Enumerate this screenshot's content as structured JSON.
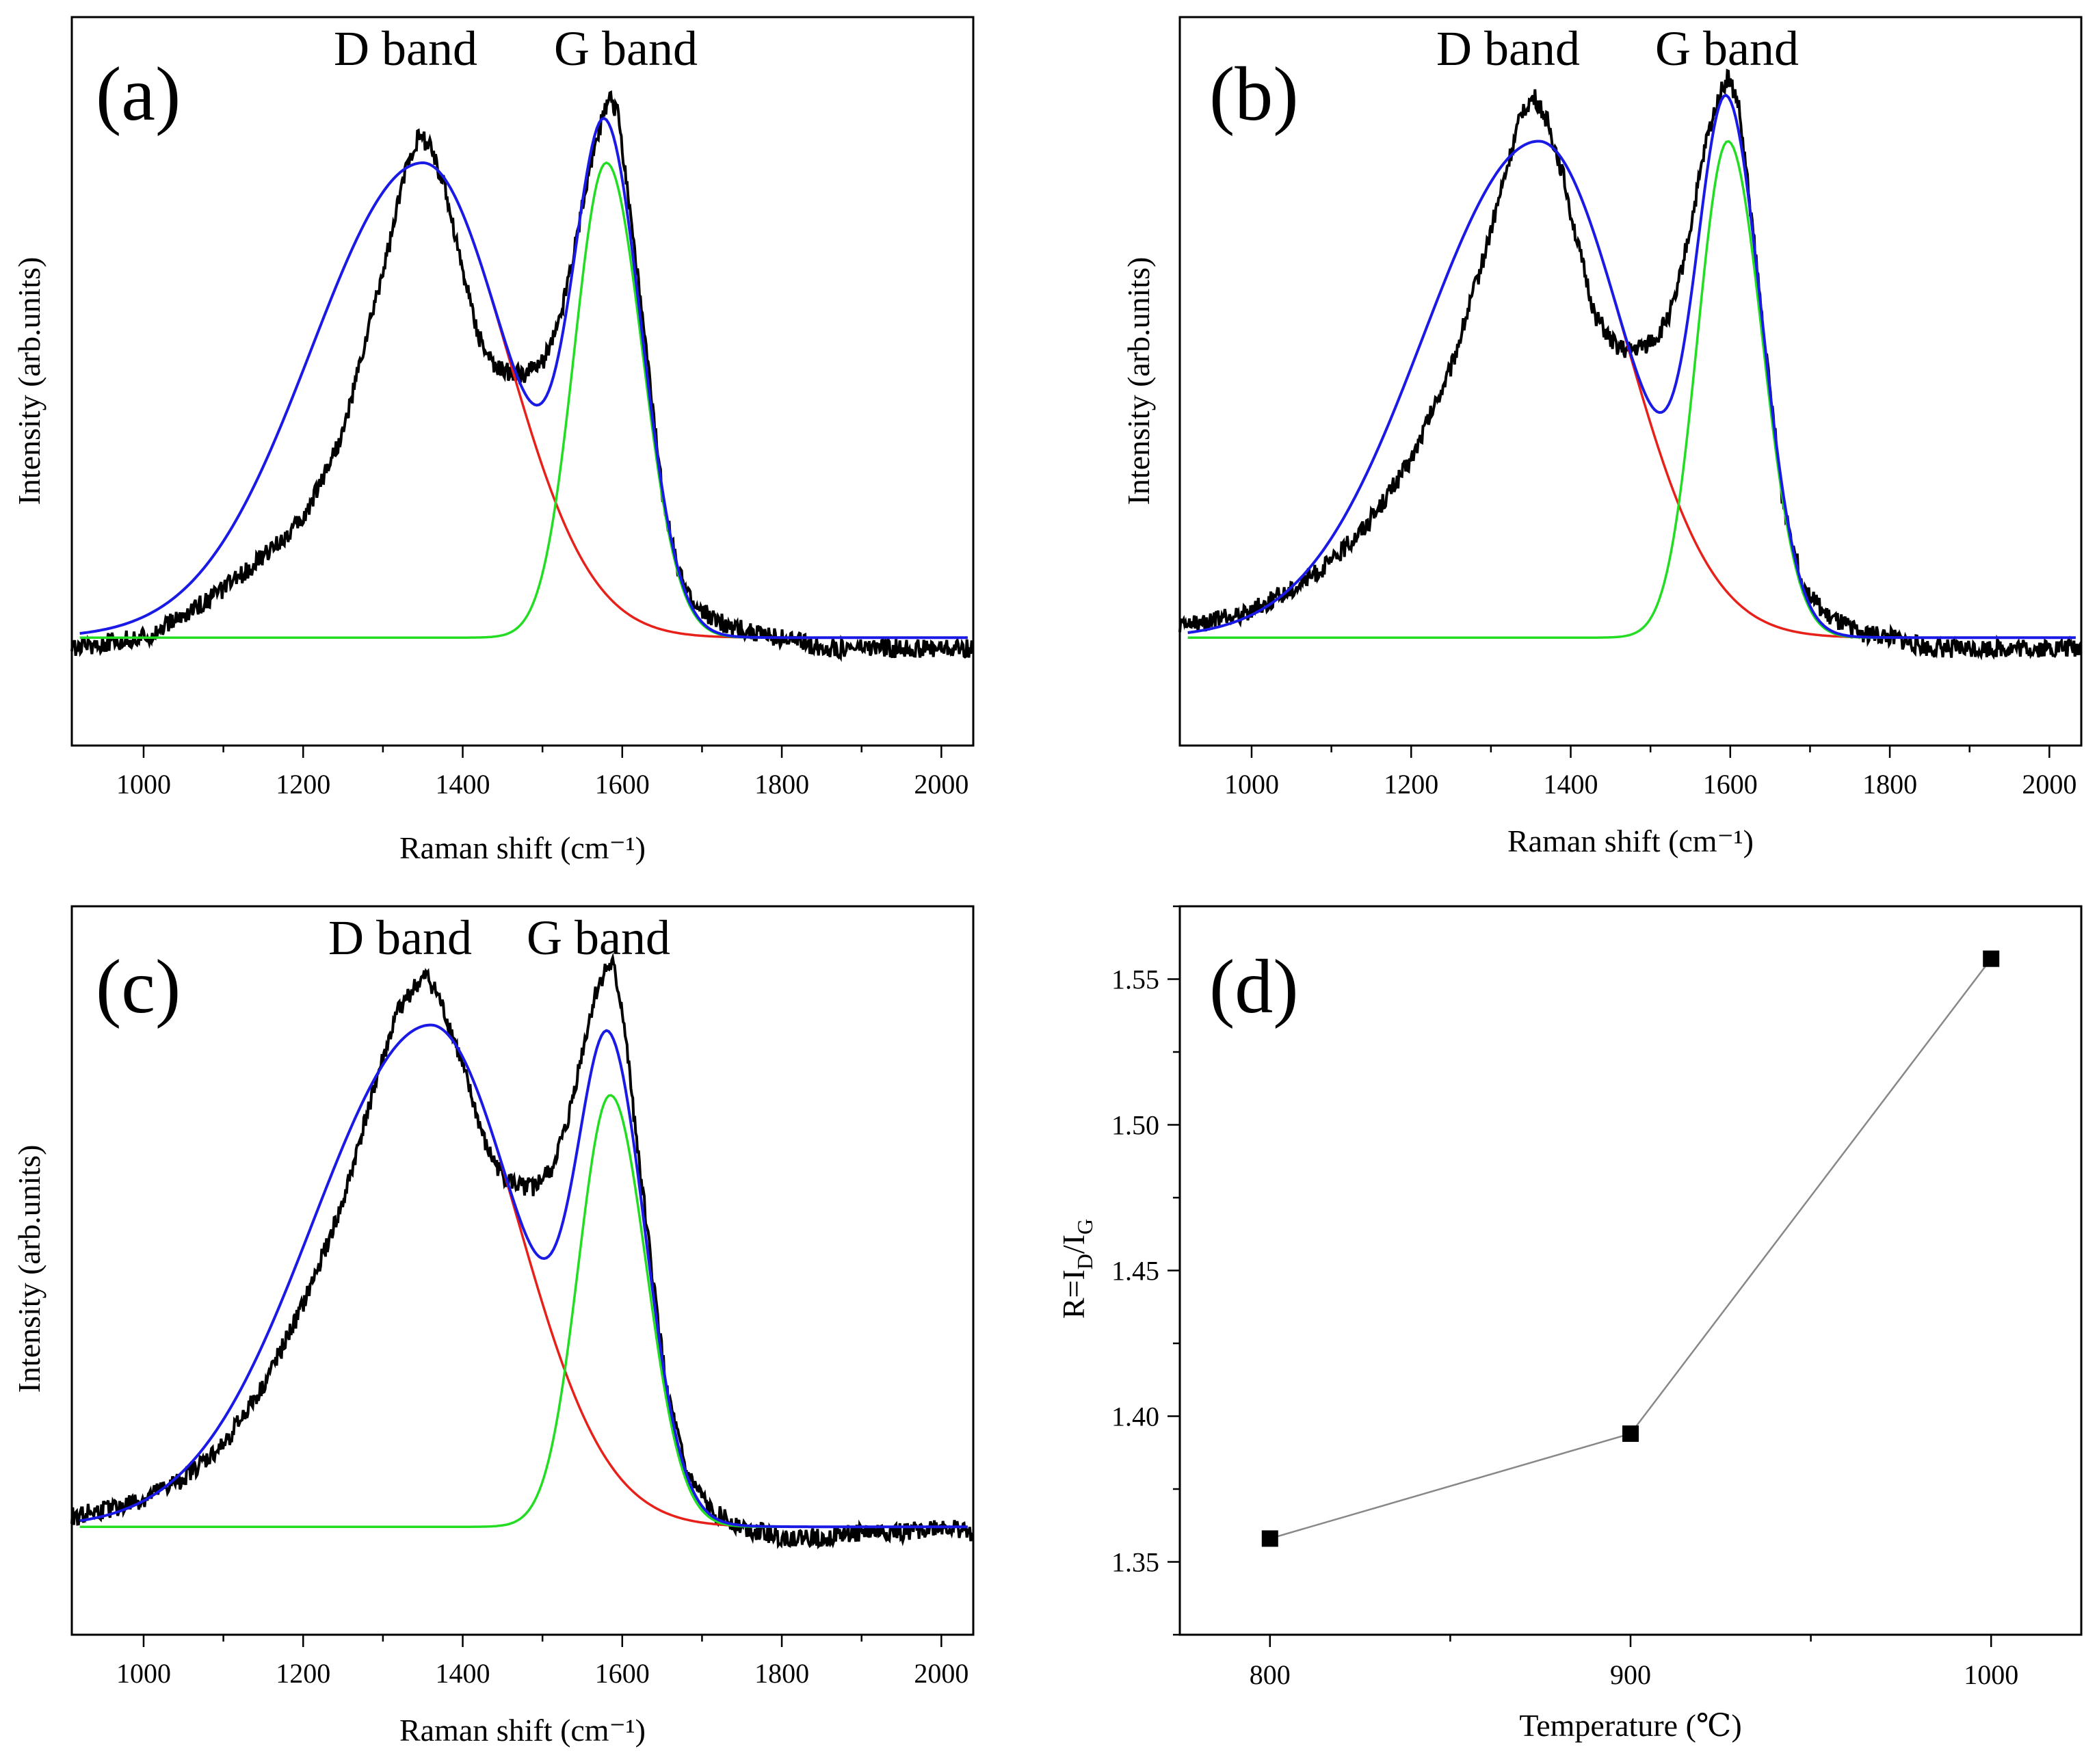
{
  "figure": {
    "panels": [
      "(a)",
      "(b)",
      "(c)",
      "(d)"
    ]
  },
  "colors": {
    "measured": "#000000",
    "d_fit": "#e8201a",
    "g_fit": "#22dd22",
    "total_fit": "#1a1ae6",
    "trend": "#888888"
  },
  "chart_data": [
    {
      "panel": "(a)",
      "type": "line",
      "xlabel": "Raman shift (cm⁻¹)",
      "ylabel": "Intensity (arb.units)",
      "annotations": [
        "D band",
        "G band"
      ],
      "xlim": [
        910,
        2040
      ],
      "ylim": [
        -0.2,
        1.15
      ],
      "xticks": [
        1000,
        1200,
        1400,
        1600,
        1800,
        2000
      ],
      "xtick_labels": [
        "1000",
        "1200",
        "1400",
        "1600",
        "1800",
        "2000"
      ],
      "fit": {
        "baseline": 0.0,
        "d_band": {
          "center": 1350,
          "amplitude": 0.88,
          "width_left": 140,
          "width_right": 105
        },
        "g_band": {
          "center": 1580,
          "amplitude": 0.88,
          "width_left": 40,
          "width_right": 45
        }
      },
      "series": [
        {
          "name": "measured",
          "x": [
            910,
            950,
            1000,
            1050,
            1100,
            1150,
            1200,
            1250,
            1280,
            1310,
            1330,
            1345,
            1360,
            1380,
            1400,
            1420,
            1440,
            1460,
            1480,
            1500,
            1520,
            1540,
            1560,
            1575,
            1585,
            1595,
            1610,
            1630,
            1650,
            1670,
            1690,
            1720,
            1760,
            1800,
            1850,
            1900,
            1950,
            2000,
            2040
          ],
          "y": [
            -0.02,
            -0.01,
            0.0,
            0.04,
            0.09,
            0.15,
            0.22,
            0.38,
            0.56,
            0.74,
            0.88,
            0.93,
            0.91,
            0.82,
            0.68,
            0.56,
            0.5,
            0.49,
            0.49,
            0.51,
            0.58,
            0.72,
            0.88,
            0.96,
            1.0,
            0.97,
            0.79,
            0.53,
            0.27,
            0.12,
            0.06,
            0.03,
            0.01,
            0.0,
            -0.02,
            -0.02,
            -0.02,
            -0.02,
            -0.02
          ]
        },
        {
          "name": "D band fit"
        },
        {
          "name": "G band fit"
        },
        {
          "name": "sum fit"
        }
      ]
    },
    {
      "panel": "(b)",
      "type": "line",
      "xlabel": "Raman shift (cm⁻¹)",
      "ylabel": "Intensity (arb.units)",
      "annotations": [
        "D band",
        "G band"
      ],
      "xlim": [
        910,
        2040
      ],
      "ylim": [
        -0.2,
        1.15
      ],
      "xticks": [
        1000,
        1200,
        1400,
        1600,
        1800,
        2000
      ],
      "xtick_labels": [
        "1000",
        "1200",
        "1400",
        "1600",
        "1800",
        "2000"
      ],
      "fit": {
        "baseline": 0.0,
        "d_band": {
          "center": 1360,
          "amplitude": 0.92,
          "width_left": 145,
          "width_right": 108
        },
        "g_band": {
          "center": 1597,
          "amplitude": 0.92,
          "width_left": 38,
          "width_right": 43
        }
      },
      "series": [
        {
          "name": "measured",
          "x": [
            910,
            950,
            1000,
            1050,
            1100,
            1150,
            1200,
            1250,
            1290,
            1320,
            1340,
            1355,
            1370,
            1390,
            1410,
            1430,
            1450,
            1470,
            1490,
            1510,
            1530,
            1550,
            1570,
            1585,
            1597,
            1610,
            1625,
            1645,
            1665,
            1690,
            1720,
            1760,
            1800,
            1850,
            1900,
            1950,
            2000,
            2040
          ],
          "y": [
            0.02,
            0.03,
            0.05,
            0.09,
            0.14,
            0.22,
            0.33,
            0.5,
            0.7,
            0.87,
            0.98,
            1.0,
            0.96,
            0.86,
            0.72,
            0.6,
            0.55,
            0.53,
            0.54,
            0.56,
            0.62,
            0.76,
            0.92,
            1.0,
            1.04,
            0.99,
            0.8,
            0.52,
            0.26,
            0.1,
            0.04,
            0.01,
            0.0,
            -0.02,
            -0.02,
            -0.02,
            -0.02,
            -0.02
          ]
        },
        {
          "name": "D band fit"
        },
        {
          "name": "G band fit"
        },
        {
          "name": "sum fit"
        }
      ]
    },
    {
      "panel": "(c)",
      "type": "line",
      "xlabel": "Raman shift (cm⁻¹)",
      "ylabel": "Intensity (arb.units)",
      "annotations": [
        "D band",
        "G band"
      ],
      "xlim": [
        910,
        2040
      ],
      "ylim": [
        -0.2,
        1.15
      ],
      "xticks": [
        1000,
        1200,
        1400,
        1600,
        1800,
        2000
      ],
      "xtick_labels": [
        "1000",
        "1200",
        "1400",
        "1600",
        "1800",
        "2000"
      ],
      "fit": {
        "baseline": 0.0,
        "d_band": {
          "center": 1360,
          "amplitude": 0.93,
          "width_left": 148,
          "width_right": 110
        },
        "g_band": {
          "center": 1585,
          "amplitude": 0.8,
          "width_left": 40,
          "width_right": 45
        }
      },
      "series": [
        {
          "name": "measured",
          "x": [
            910,
            950,
            1000,
            1050,
            1100,
            1150,
            1200,
            1250,
            1290,
            1320,
            1340,
            1355,
            1370,
            1390,
            1410,
            1430,
            1450,
            1470,
            1490,
            1510,
            1530,
            1550,
            1565,
            1578,
            1588,
            1600,
            1615,
            1635,
            1655,
            1680,
            1710,
            1750,
            1800,
            1850,
            1900,
            1950,
            2000,
            2040
          ],
          "y": [
            0.02,
            0.03,
            0.05,
            0.09,
            0.15,
            0.26,
            0.41,
            0.6,
            0.82,
            0.96,
            1.0,
            1.02,
            0.98,
            0.9,
            0.8,
            0.7,
            0.65,
            0.63,
            0.63,
            0.66,
            0.74,
            0.88,
            0.98,
            1.03,
            1.04,
            0.96,
            0.76,
            0.5,
            0.26,
            0.1,
            0.03,
            0.0,
            -0.02,
            -0.02,
            -0.01,
            -0.01,
            0.0,
            -0.01
          ]
        },
        {
          "name": "D band fit"
        },
        {
          "name": "G band fit"
        },
        {
          "name": "sum fit"
        }
      ]
    },
    {
      "panel": "(d)",
      "type": "scatter",
      "xlabel": "Temperature (℃)",
      "ylabel_main": "R=I",
      "ylabel_sub_d": "D",
      "ylabel_mid": "/I",
      "ylabel_sub_g": "G",
      "x": [
        800,
        900,
        1000
      ],
      "y": [
        1.358,
        1.394,
        1.557
      ],
      "xlim": [
        775,
        1025
      ],
      "ylim": [
        1.325,
        1.575
      ],
      "xticks": [
        800,
        900,
        1000
      ],
      "xtick_labels": [
        "800",
        "900",
        "1000"
      ],
      "yticks": [
        1.35,
        1.4,
        1.45,
        1.5,
        1.55
      ],
      "ytick_labels": [
        "1.35",
        "1.40",
        "1.45",
        "1.50",
        "1.55"
      ],
      "marker": "square",
      "line": true
    }
  ]
}
